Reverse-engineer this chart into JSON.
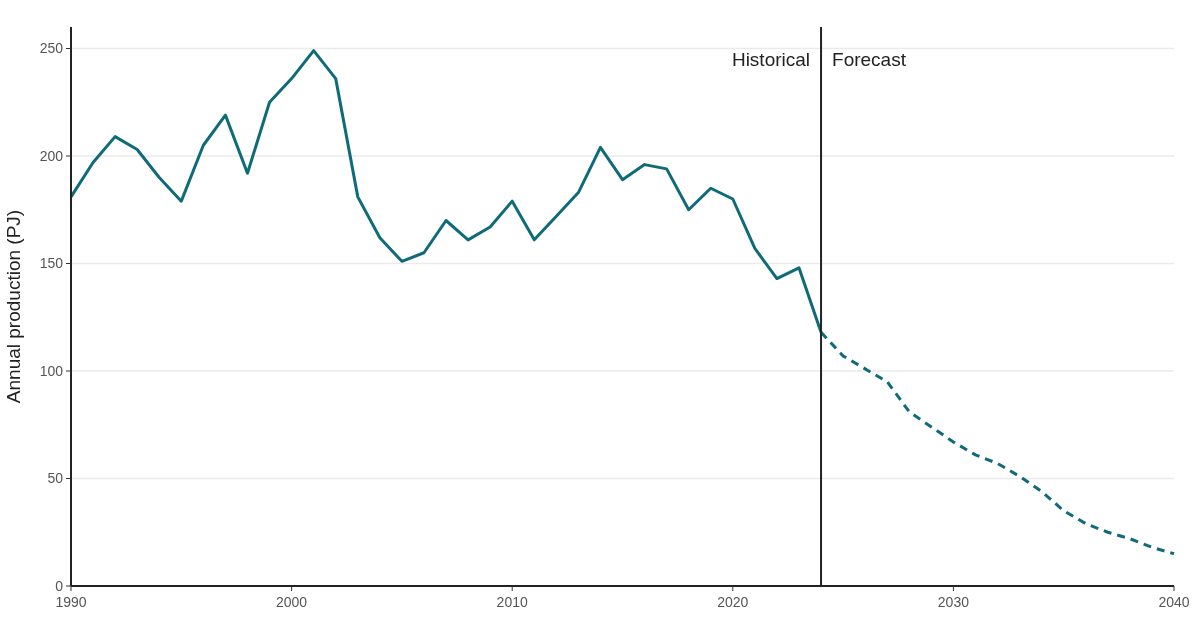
{
  "chart_data": {
    "type": "line",
    "ylabel": "Annual production (PJ)",
    "xlim": [
      1990,
      2040
    ],
    "xticks": [
      1990,
      2000,
      2010,
      2020,
      2030,
      2040
    ],
    "ylim": [
      0,
      260
    ],
    "yticks": [
      0,
      50,
      100,
      150,
      200,
      250
    ],
    "grid": "y",
    "marker": "none",
    "series": [
      {
        "color": "#0f6b78",
        "line_style": "solid",
        "x": [
          1990,
          1991,
          1992,
          1993,
          1994,
          1995,
          1996,
          1997,
          1998,
          1999,
          2000,
          2001,
          2002,
          2003,
          2004,
          2005,
          2006,
          2007,
          2008,
          2009,
          2010,
          2011,
          2012,
          2013,
          2014,
          2015,
          2016,
          2017,
          2018,
          2019,
          2020,
          2021,
          2022,
          2023,
          2024
        ],
        "values": [
          181,
          197,
          209,
          203,
          190,
          179,
          205,
          219,
          192,
          225,
          236,
          249,
          236,
          181,
          162,
          151,
          155,
          170,
          161,
          167,
          179,
          161,
          172,
          183,
          204,
          189,
          196,
          194,
          175,
          185,
          180,
          157,
          143,
          148,
          118
        ]
      },
      {
        "color": "#0f6b78",
        "line_style": "dashed",
        "x": [
          2024,
          2025,
          2026,
          2027,
          2028,
          2029,
          2030,
          2031,
          2032,
          2033,
          2034,
          2035,
          2036,
          2037,
          2038,
          2039,
          2040
        ],
        "values": [
          118,
          107,
          101,
          95,
          81,
          74,
          67,
          61,
          57,
          51,
          44,
          35,
          29,
          25,
          22,
          18,
          15
        ]
      }
    ],
    "ref_lines": [
      {
        "axis": "x",
        "value": 2024,
        "color": "#222222",
        "line_style": "solid"
      }
    ],
    "annotations": [
      {
        "text": "Historical",
        "x": 2024,
        "y": 245
      },
      {
        "text": "Forecast",
        "x": 2024,
        "y": 245
      }
    ]
  }
}
